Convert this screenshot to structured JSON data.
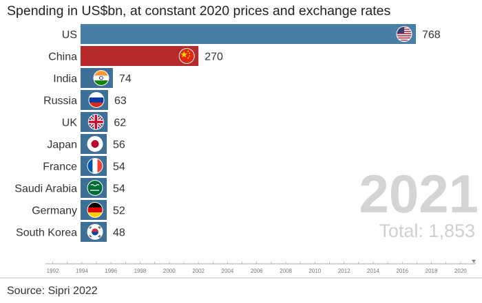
{
  "colors": {
    "us_bar": "#4a7fa5",
    "china_bar": "#b72a2a",
    "other_bar": "#3d6f97",
    "axis": "#aaaaaa"
  },
  "chart_data": {
    "type": "bar",
    "orientation": "horizontal",
    "title": "Spending in US$bn, at constant 2020 prices and exchange rates",
    "categories": [
      "US",
      "China",
      "India",
      "Russia",
      "UK",
      "Japan",
      "France",
      "Saudi Arabia",
      "Germany",
      "South Korea"
    ],
    "values": [
      768,
      270,
      74,
      63,
      62,
      56,
      54,
      54,
      52,
      48
    ],
    "value_labels": [
      "768",
      "270",
      "74",
      "63",
      "62",
      "56",
      "54",
      "54",
      "52",
      "48"
    ],
    "flags": [
      "us-flag-icon",
      "china-flag-icon",
      "india-flag-icon",
      "russia-flag-icon",
      "uk-flag-icon",
      "japan-flag-icon",
      "france-flag-icon",
      "saudi-arabia-flag-icon",
      "germany-flag-icon",
      "south-korea-flag-icon"
    ],
    "timeline_ticks": [
      "1992",
      "1994",
      "1996",
      "1998",
      "2000",
      "2002",
      "2004",
      "2006",
      "2008",
      "2010",
      "2012",
      "2014",
      "2016",
      "2018",
      "2020"
    ],
    "timeline_range": [
      1991.5,
      2021
    ]
  },
  "overlay": {
    "year": "2021",
    "total": "Total: 1,853"
  },
  "source": "Source: Sipri 2022"
}
